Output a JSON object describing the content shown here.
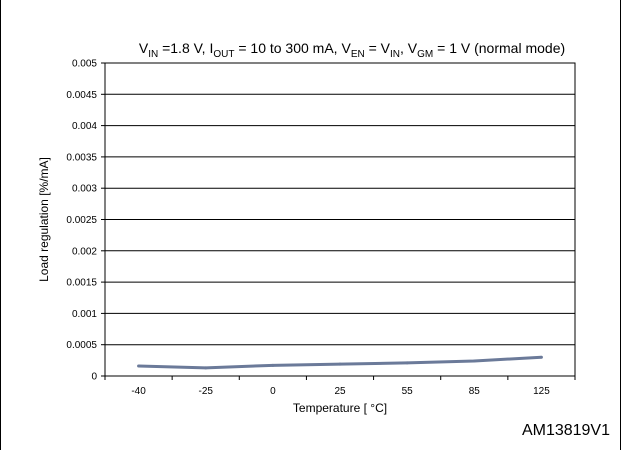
{
  "figure_id": "AM13819V1",
  "chart_data": {
    "type": "line",
    "title": {
      "segments": [
        {
          "t": "V"
        },
        {
          "t": "IN",
          "sub": true
        },
        {
          "t": " =1.8 V, I"
        },
        {
          "t": "OUT",
          "sub": true
        },
        {
          "t": " = 10 to  300 mA, V"
        },
        {
          "t": "EN",
          "sub": true
        },
        {
          "t": " = V"
        },
        {
          "t": "IN",
          "sub": true
        },
        {
          "t": ", V"
        },
        {
          "t": "GM",
          "sub": true
        },
        {
          "t": " = 1 V (normal mode)"
        }
      ]
    },
    "xlabel": "Temperature [ °C]",
    "ylabel": "Load regulation [%/mA]",
    "categories": [
      "-40",
      "-25",
      "0",
      "25",
      "55",
      "85",
      "125"
    ],
    "y_ticks": [
      "0",
      "0.0005",
      "0.001",
      "0.0015",
      "0.002",
      "0.0025",
      "0.003",
      "0.0035",
      "0.004",
      "0.0045",
      "0.005"
    ],
    "ylim": [
      0,
      0.005
    ],
    "grid": true,
    "series": [
      {
        "values": [
          0.00016,
          0.00013,
          0.00017,
          0.00019,
          0.00021,
          0.00024,
          0.0003
        ],
        "color": "#6b7a99"
      }
    ]
  }
}
